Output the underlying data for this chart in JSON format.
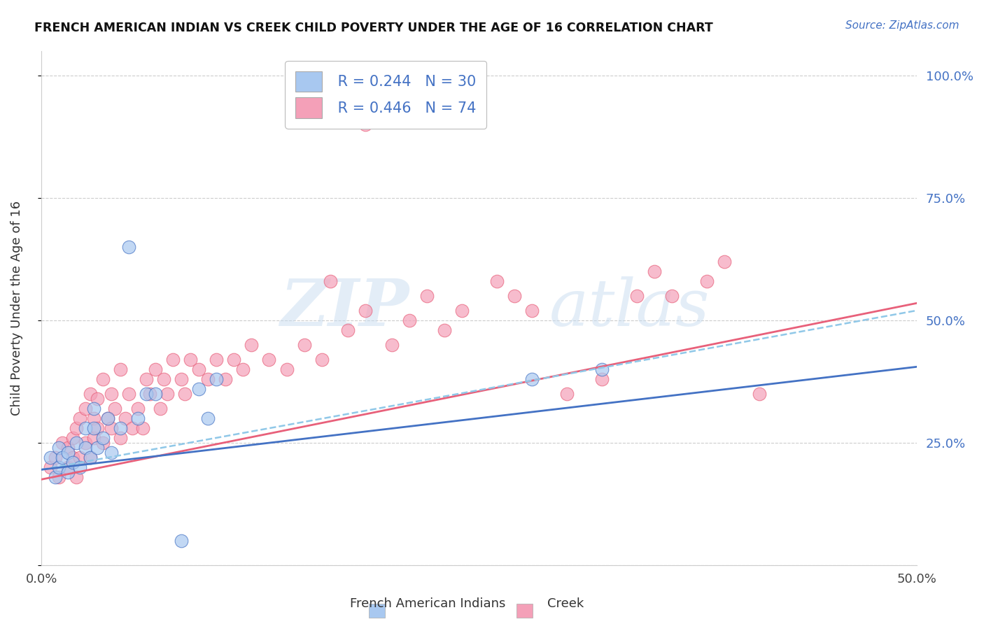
{
  "title": "FRENCH AMERICAN INDIAN VS CREEK CHILD POVERTY UNDER THE AGE OF 16 CORRELATION CHART",
  "source": "Source: ZipAtlas.com",
  "ylabel": "Child Poverty Under the Age of 16",
  "xlim": [
    0.0,
    0.5
  ],
  "ylim": [
    0.0,
    1.05
  ],
  "xticks": [
    0.0,
    0.1,
    0.2,
    0.3,
    0.4,
    0.5
  ],
  "xticklabels": [
    "0.0%",
    "",
    "",
    "",
    "",
    "50.0%"
  ],
  "yticks_right": [
    0.0,
    0.25,
    0.5,
    0.75,
    1.0
  ],
  "yticklabels_right": [
    "",
    "25.0%",
    "50.0%",
    "75.0%",
    "100.0%"
  ],
  "blue_color": "#A8C8F0",
  "pink_color": "#F4A0B8",
  "blue_line_color": "#4472C4",
  "pink_line_color": "#E8607A",
  "dashed_line_color": "#90C8E8",
  "legend_R_blue": "R = 0.244",
  "legend_N_blue": "N = 30",
  "legend_R_pink": "R = 0.446",
  "legend_N_pink": "N = 74",
  "legend_label_blue": "French American Indians",
  "legend_label_pink": "Creek",
  "watermark_zip": "ZIP",
  "watermark_atlas": "atlas",
  "grid_color": "#CCCCCC",
  "background_color": "#FFFFFF",
  "blue_scatter_x": [
    0.005,
    0.008,
    0.01,
    0.01,
    0.012,
    0.015,
    0.015,
    0.018,
    0.02,
    0.022,
    0.025,
    0.025,
    0.028,
    0.03,
    0.03,
    0.032,
    0.035,
    0.038,
    0.04,
    0.045,
    0.05,
    0.055,
    0.06,
    0.065,
    0.09,
    0.095,
    0.1,
    0.28,
    0.32,
    0.08
  ],
  "blue_scatter_y": [
    0.22,
    0.18,
    0.2,
    0.24,
    0.22,
    0.19,
    0.23,
    0.21,
    0.25,
    0.2,
    0.24,
    0.28,
    0.22,
    0.28,
    0.32,
    0.24,
    0.26,
    0.3,
    0.23,
    0.28,
    0.65,
    0.3,
    0.35,
    0.35,
    0.36,
    0.3,
    0.38,
    0.38,
    0.4,
    0.05
  ],
  "pink_scatter_x": [
    0.005,
    0.008,
    0.01,
    0.012,
    0.015,
    0.015,
    0.018,
    0.018,
    0.02,
    0.02,
    0.022,
    0.022,
    0.025,
    0.025,
    0.028,
    0.028,
    0.03,
    0.03,
    0.032,
    0.032,
    0.035,
    0.035,
    0.038,
    0.04,
    0.04,
    0.042,
    0.045,
    0.045,
    0.048,
    0.05,
    0.052,
    0.055,
    0.058,
    0.06,
    0.062,
    0.065,
    0.068,
    0.07,
    0.072,
    0.075,
    0.08,
    0.082,
    0.085,
    0.09,
    0.095,
    0.1,
    0.105,
    0.11,
    0.115,
    0.12,
    0.13,
    0.14,
    0.15,
    0.16,
    0.165,
    0.175,
    0.185,
    0.2,
    0.21,
    0.22,
    0.23,
    0.24,
    0.26,
    0.27,
    0.28,
    0.3,
    0.32,
    0.34,
    0.35,
    0.36,
    0.38,
    0.39,
    0.41,
    0.185
  ],
  "pink_scatter_y": [
    0.2,
    0.22,
    0.18,
    0.25,
    0.2,
    0.24,
    0.22,
    0.26,
    0.18,
    0.28,
    0.22,
    0.3,
    0.25,
    0.32,
    0.22,
    0.35,
    0.26,
    0.3,
    0.28,
    0.34,
    0.25,
    0.38,
    0.3,
    0.28,
    0.35,
    0.32,
    0.26,
    0.4,
    0.3,
    0.35,
    0.28,
    0.32,
    0.28,
    0.38,
    0.35,
    0.4,
    0.32,
    0.38,
    0.35,
    0.42,
    0.38,
    0.35,
    0.42,
    0.4,
    0.38,
    0.42,
    0.38,
    0.42,
    0.4,
    0.45,
    0.42,
    0.4,
    0.45,
    0.42,
    0.58,
    0.48,
    0.52,
    0.45,
    0.5,
    0.55,
    0.48,
    0.52,
    0.58,
    0.55,
    0.52,
    0.35,
    0.38,
    0.55,
    0.6,
    0.55,
    0.58,
    0.62,
    0.35,
    0.9
  ],
  "blue_line_y_intercept": 0.195,
  "blue_line_slope": 0.42,
  "pink_line_y_intercept": 0.175,
  "pink_line_slope": 0.72,
  "dashed_line_y_intercept": 0.195,
  "dashed_line_slope": 0.65
}
